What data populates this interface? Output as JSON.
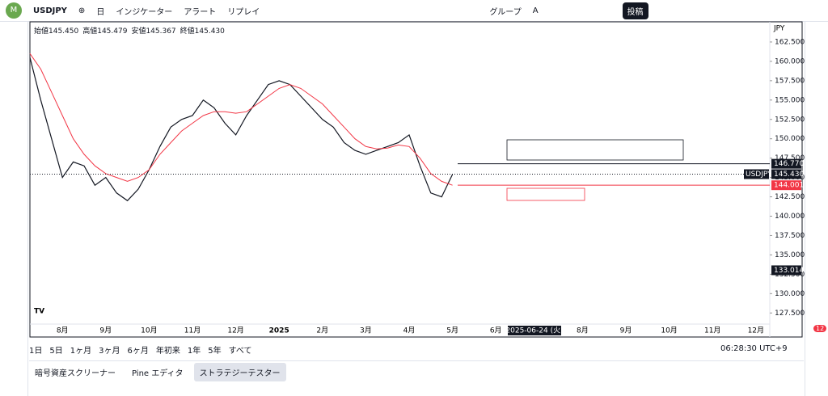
{
  "toolbar": {
    "symbol": "USDJPY",
    "interval": "日",
    "indicators": "インジケーター",
    "alert": "アラート",
    "replay": "リプレイ",
    "group": "グループ",
    "group_letter": "A",
    "publish": "投稿"
  },
  "ohlc": [
    "始値145.450",
    "高値145.479",
    "安値145.367",
    "終値145.430"
  ],
  "currency": "JPY",
  "chart_data": {
    "type": "line",
    "categories": [
      null,
      null,
      null,
      "8月",
      null,
      null,
      null,
      "9月",
      null,
      null,
      null,
      "10月",
      null,
      null,
      null,
      "11月",
      null,
      null,
      null,
      "12月",
      null,
      null,
      null,
      "2025",
      null,
      null,
      null,
      "2月",
      null,
      null,
      null,
      "3月",
      null,
      null,
      null,
      "4月",
      null,
      null,
      null,
      "5月",
      null,
      null,
      null,
      "6月",
      null,
      null,
      null,
      null,
      null,
      null,
      null,
      "8月",
      null,
      null,
      null,
      "9月",
      null,
      null,
      null,
      "10月",
      null,
      null,
      null,
      "11月",
      null,
      null,
      null,
      "12月"
    ],
    "series": [
      {
        "name": "USDJPY",
        "color": "#131722",
        "values": [
          160.5,
          155,
          150,
          145,
          147,
          146.5,
          144,
          145,
          143,
          142,
          143.5,
          146,
          149,
          151.5,
          152.5,
          153,
          155,
          154,
          152,
          150.5,
          153,
          155,
          157,
          157.5,
          157,
          155.5,
          154,
          152.5,
          151.5,
          149.5,
          148.5,
          148,
          148.5,
          149,
          149.5,
          150.5,
          146.5,
          143,
          142.5,
          145.4,
          null,
          null,
          null,
          null,
          null,
          null,
          null,
          null,
          null,
          null,
          null,
          null,
          null,
          null,
          null,
          null,
          null,
          null,
          null,
          null,
          null,
          null,
          null,
          null,
          null,
          null,
          null,
          null
        ]
      },
      {
        "color": "#f23645",
        "values": [
          161,
          159,
          156,
          153,
          150,
          148,
          146.5,
          145.5,
          145,
          144.5,
          145,
          146,
          148,
          149.5,
          151,
          152,
          153,
          153.5,
          153.5,
          153.3,
          153.5,
          154.5,
          155.5,
          156.5,
          157,
          156.5,
          155.5,
          154.5,
          153,
          151.5,
          150,
          149,
          148.7,
          148.8,
          149.2,
          149,
          147.5,
          145.5,
          144.5,
          144,
          null,
          null,
          null,
          null,
          null,
          null,
          null,
          null,
          null,
          null,
          null,
          null,
          null,
          null,
          null,
          null,
          null,
          null,
          null,
          null,
          null,
          null,
          null,
          null,
          null,
          null,
          null,
          null
        ]
      }
    ],
    "ylim": [
      124.5,
      165
    ],
    "yticks": [
      {
        "value": 127.5,
        "label": "127.500"
      },
      {
        "value": 130,
        "label": "130.000"
      },
      {
        "value": 132.5,
        "label": "132.500"
      },
      {
        "value": 135,
        "label": "135.000"
      },
      {
        "value": 137.5,
        "label": "137.500"
      },
      {
        "value": 140,
        "label": "140.000"
      },
      {
        "value": 142.5,
        "label": "142.500"
      },
      {
        "value": 145,
        "label": "145.000"
      },
      {
        "value": 147.5,
        "label": "147.500"
      },
      {
        "value": 150,
        "label": "150.000"
      },
      {
        "value": 152.5,
        "label": "152.500"
      },
      {
        "value": 155,
        "label": "155.000"
      },
      {
        "value": 157.5,
        "label": "157.500"
      },
      {
        "value": 160,
        "label": "160.000"
      },
      {
        "value": 162.5,
        "label": "162.500"
      }
    ],
    "hlines": [
      {
        "value": 146.77,
        "label": "146.770",
        "color": "#131722"
      },
      {
        "value": 144.001,
        "label": "144.001",
        "color": "#f23645"
      }
    ],
    "last_price": {
      "name": "USDJPY",
      "value": 145.43,
      "label": "145.430"
    },
    "crosshair_price": {
      "value": 133.014,
      "label": "133.014"
    },
    "crosshair_date": "2025-06-24 (火)"
  },
  "bottom_bar": {
    "ranges": [
      "1日",
      "5日",
      "1ヶ月",
      "3ヶ月",
      "6ヶ月",
      "年初来",
      "1年",
      "5年",
      "すべて"
    ],
    "time": "06:28:30 UTC+9"
  },
  "tabs": [
    "暗号資産スクリーナー",
    "Pine エディタ",
    "ストラテジーテスター"
  ],
  "notification_badge": "12"
}
